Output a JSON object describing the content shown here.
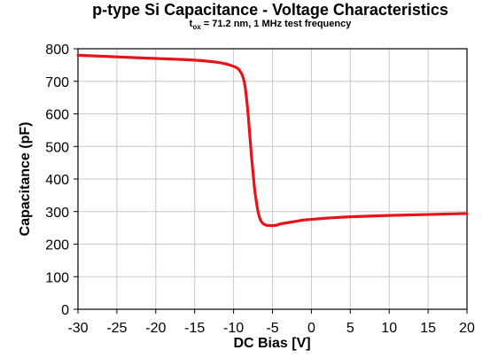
{
  "chart_data": {
    "type": "line",
    "title": "p-type Si Capacitance - Voltage Characteristics",
    "subtitle": {
      "t": "t",
      "sub": "ox",
      "rest": " = 71.2 nm, 1 MHz test frequency"
    },
    "xlabel": "DC Bias [V]",
    "ylabel": "Capacitance (pF)",
    "xlim": [
      -30,
      20
    ],
    "ylim": [
      0,
      800
    ],
    "xticks": [
      -30,
      -25,
      -20,
      -15,
      -10,
      -5,
      0,
      5,
      10,
      15,
      20
    ],
    "yticks": [
      0,
      100,
      200,
      300,
      400,
      500,
      600,
      700,
      800
    ],
    "grid": true,
    "line_color": "#e8141b",
    "series": [
      {
        "x": [
          -30,
          -25,
          -20,
          -15,
          -12,
          -10.5,
          -9.5,
          -9,
          -8.7,
          -8.5,
          -8.3,
          -8.1,
          -7.9,
          -7.7,
          -7.5,
          -7.3,
          -7.1,
          -6.9,
          -6.7,
          -6.5,
          -6.2,
          -5.8,
          -5.3,
          -5,
          -4.5,
          -4,
          -3,
          -2,
          -1,
          0,
          2,
          5,
          10,
          15,
          20
        ],
        "y": [
          780,
          775,
          770,
          765,
          758,
          750,
          740,
          725,
          705,
          680,
          640,
          590,
          530,
          470,
          420,
          370,
          335,
          305,
          285,
          272,
          263,
          258,
          257,
          257,
          258,
          262,
          266,
          270,
          274,
          276,
          280,
          284,
          288,
          291,
          294
        ]
      }
    ]
  }
}
